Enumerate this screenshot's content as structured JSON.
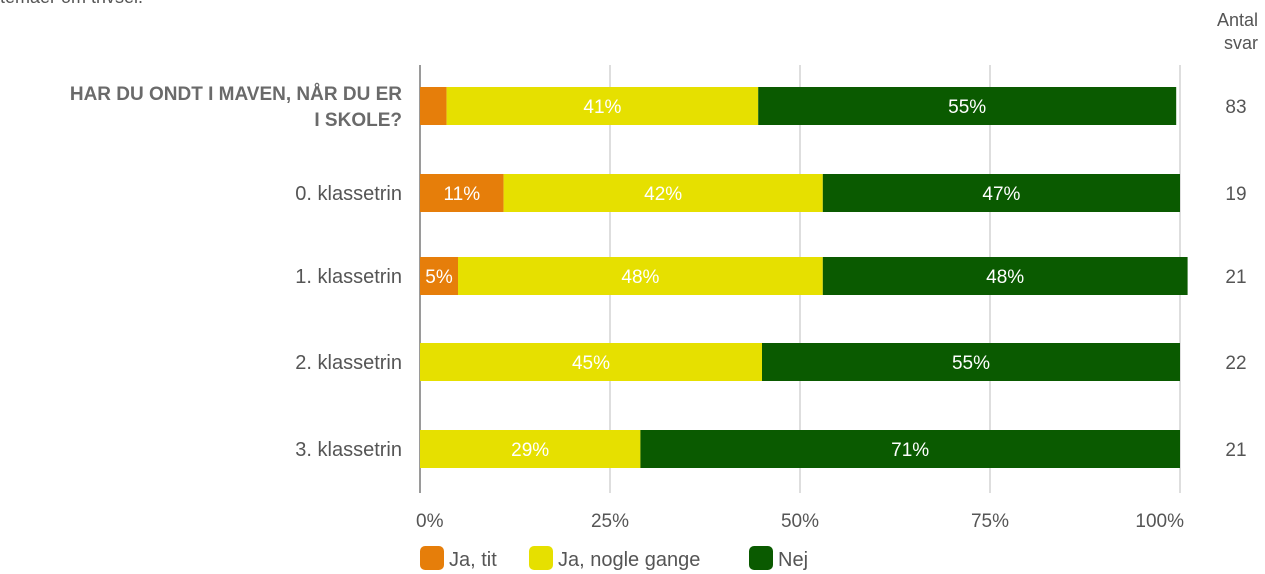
{
  "intro_fragment": "temaer om trivsel.",
  "chart_data": {
    "type": "bar",
    "orientation": "horizontal",
    "stacked": true,
    "categories": [
      "HAR DU ONDT I MAVEN, NÅR DU ER I SKOLE?",
      "0. klassetrin",
      "1. klassetrin",
      "2. klassetrin",
      "3. klassetrin"
    ],
    "series": [
      {
        "name": "Ja, tit",
        "color": "#e67e0a",
        "values": [
          3.5,
          11,
          5,
          0,
          0
        ],
        "labels": [
          "",
          "11%",
          "5%",
          "",
          ""
        ]
      },
      {
        "name": "Ja, nogle gange",
        "color": "#e6e000",
        "values": [
          41,
          42,
          48,
          45,
          29
        ],
        "labels": [
          "41%",
          "42%",
          "48%",
          "45%",
          "29%"
        ]
      },
      {
        "name": "Nej",
        "color": "#0a5a00",
        "values": [
          55,
          47,
          48,
          55,
          71
        ],
        "labels": [
          "55%",
          "47%",
          "48%",
          "55%",
          "71%"
        ]
      }
    ],
    "xlim": [
      0,
      100
    ],
    "xticks": [
      "0%",
      "25%",
      "50%",
      "75%",
      "100%"
    ],
    "grid": true,
    "legend_position": "bottom",
    "counts_header": [
      "Antal",
      "svar"
    ],
    "counts": [
      "83",
      "19",
      "21",
      "22",
      "21"
    ]
  }
}
